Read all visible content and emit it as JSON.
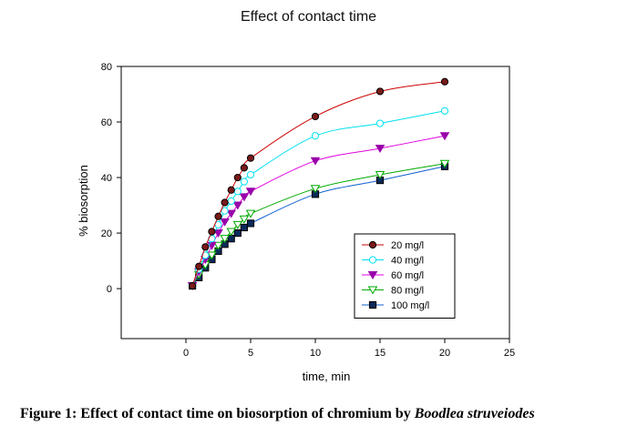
{
  "chart_data": {
    "type": "line",
    "title": "Effect of contact time",
    "xlabel": "time, min",
    "ylabel": "% biosorption",
    "xlim": [
      -5,
      25
    ],
    "ylim": [
      -18,
      80
    ],
    "xticks": [
      0,
      5,
      10,
      15,
      20,
      25
    ],
    "yticks": [
      0,
      20,
      40,
      60,
      80
    ],
    "grid": false,
    "legend_position": "lower-right",
    "series": [
      {
        "name": "20 mg/l",
        "color": "#cc0000",
        "marker": "circle-filled",
        "marker_color": "#7a1a1a",
        "x": [
          0.5,
          1,
          1.5,
          2,
          2.5,
          3,
          3.5,
          4,
          4.5,
          5,
          10,
          15,
          20
        ],
        "y": [
          1,
          8,
          15,
          20.5,
          26,
          31,
          35.5,
          40,
          43.5,
          47,
          62,
          71,
          74.5
        ]
      },
      {
        "name": "40 mg/l",
        "color": "#00e0f0",
        "marker": "circle-open",
        "marker_color": "#00e0f0",
        "x": [
          0.5,
          1,
          1.5,
          2,
          2.5,
          3,
          3.5,
          4,
          4.5,
          5,
          10,
          15,
          20
        ],
        "y": [
          1,
          7,
          12,
          18,
          23,
          28,
          31.5,
          35,
          38.5,
          41,
          55,
          59.5,
          64
        ]
      },
      {
        "name": "60 mg/l",
        "color": "#e000e0",
        "marker": "triangle-down-filled",
        "marker_color": "#9900aa",
        "x": [
          0.5,
          1,
          1.5,
          2,
          2.5,
          3,
          3.5,
          4,
          4.5,
          5,
          10,
          15,
          20
        ],
        "y": [
          1,
          6,
          10.5,
          15.5,
          20,
          24,
          27,
          30,
          33,
          35,
          46,
          50.5,
          55
        ]
      },
      {
        "name": "80 mg/l",
        "color": "#00aa00",
        "marker": "triangle-down-open",
        "marker_color": "#00aa00",
        "x": [
          0.5,
          1,
          1.5,
          2,
          2.5,
          3,
          3.5,
          4,
          4.5,
          5,
          10,
          15,
          20
        ],
        "y": [
          1,
          5,
          8.5,
          12,
          15.5,
          18,
          20.5,
          23,
          25,
          27,
          36,
          41,
          45
        ]
      },
      {
        "name": "100 mg/l",
        "color": "#1060d0",
        "marker": "square-filled",
        "marker_color": "#0a2a5a",
        "x": [
          0.5,
          1,
          1.5,
          2,
          2.5,
          3,
          3.5,
          4,
          4.5,
          5,
          10,
          15,
          20
        ],
        "y": [
          1,
          4,
          7.5,
          10.5,
          13.5,
          16,
          18,
          20,
          22,
          23.5,
          34,
          39,
          44
        ]
      }
    ]
  },
  "caption": {
    "text": "Figure 1: Effect of contact time on biosorption of chromium by",
    "species": "Boodlea struveiodes"
  }
}
